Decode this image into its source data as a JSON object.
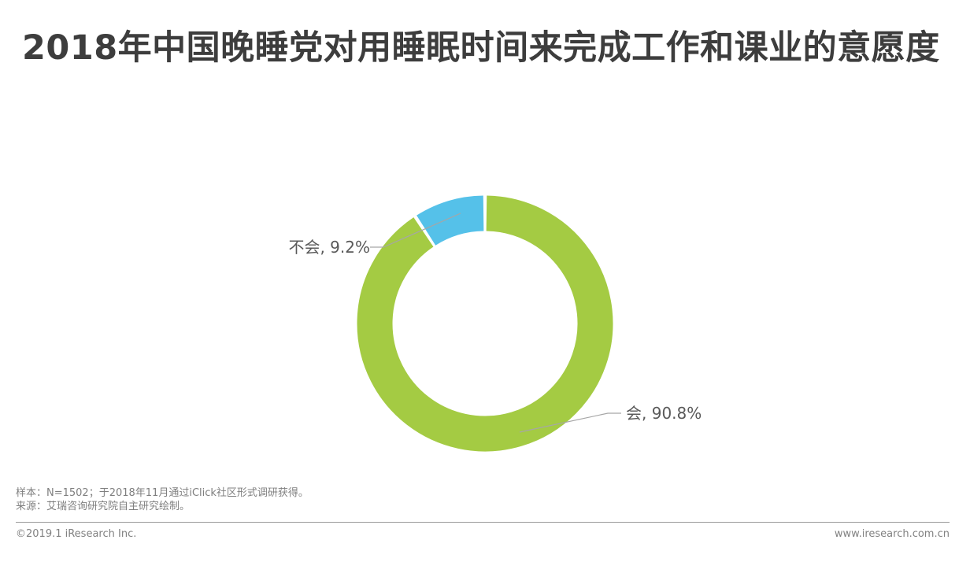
{
  "title": "2018年中国晚睡党对用睡眠时间来完成工作和课业的意愿度",
  "chart_data": {
    "type": "pie",
    "subtype": "donut",
    "title": "2018年中国晚睡党对用睡眠时间来完成工作和课业的意愿度",
    "direction": "clockwise",
    "start_angle_deg": 0,
    "total": 100,
    "segments": [
      {
        "label": "会",
        "value": 90.8,
        "display": "会, 90.8%",
        "color": "#a4cb43"
      },
      {
        "label": "不会",
        "value": 9.2,
        "display": "不会, 9.2%",
        "color": "#55c1e9"
      }
    ],
    "legend_position": "none",
    "leader_line_color": "#a6a6a6"
  },
  "footnotes": {
    "sample": "样本：N=1502；于2018年11月通过iClick社区形式调研获得。",
    "source": "来源：艾瑞咨询研究院自主研究绘制。"
  },
  "footer": {
    "copyright": "©2019.1 iResearch Inc.",
    "website": "www.iresearch.com.cn"
  }
}
